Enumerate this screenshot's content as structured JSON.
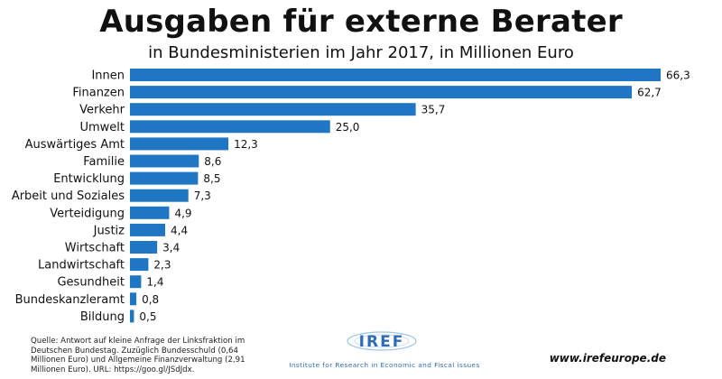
{
  "chart_data": {
    "type": "bar",
    "orientation": "horizontal",
    "title": "Ausgaben für externe Berater",
    "subtitle": "in Bundesministerien im Jahr 2017, in Millionen Euro",
    "categories": [
      "Innen",
      "Finanzen",
      "Verkehr",
      "Umwelt",
      "Auswärtiges Amt",
      "Familie",
      "Entwicklung",
      "Arbeit und Soziales",
      "Verteidigung",
      "Justiz",
      "Wirtschaft",
      "Landwirtschaft",
      "Gesundheit",
      "Bundeskanzleramt",
      "Bildung"
    ],
    "values": [
      66.3,
      62.7,
      35.7,
      25.0,
      12.3,
      8.6,
      8.5,
      7.3,
      4.9,
      4.4,
      3.4,
      2.3,
      1.4,
      0.8,
      0.5
    ],
    "value_labels": [
      "66,3",
      "62,7",
      "35,7",
      "25,0",
      "12,3",
      "8,6",
      "8,5",
      "7,3",
      "4,9",
      "4,4",
      "3,4",
      "2,3",
      "1,4",
      "0,8",
      "0,5"
    ],
    "bar_color": "#1f77c3",
    "xlim": [
      0,
      66.3
    ],
    "grid": false,
    "legend": "none"
  },
  "footer": {
    "source": "Quelle: Antwort auf kleine Anfrage der Linksfraktion im Deutschen Bundestag. Zuzüglich Bundesschuld (0,64 Millionen Euro) und Allgemeine Finanzverwaltung (2,91 Millionen Euro). URL: https://goo.gl/JSdJdx.",
    "logo_text": "IREF",
    "tagline": "Institute for Research in Economic and Fiscal issues",
    "website": "www.irefeurope.de"
  }
}
